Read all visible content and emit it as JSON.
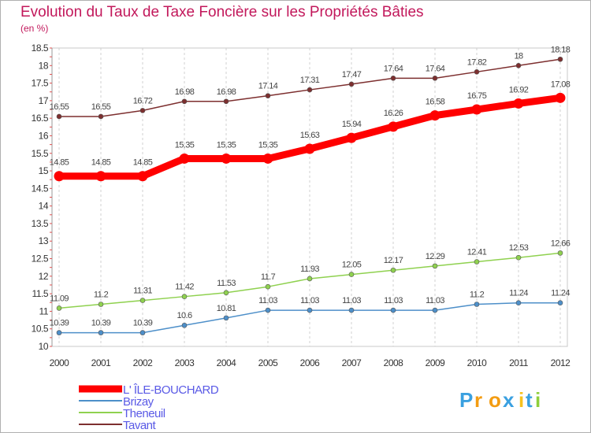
{
  "chart_data": {
    "type": "line",
    "title": "Evolution du Taux de Taxe Foncière sur les Propriétés Bâties",
    "unit_label": "(en %)",
    "categories": [
      "2000",
      "2001",
      "2002",
      "2003",
      "2004",
      "2005",
      "2006",
      "2007",
      "2008",
      "2009",
      "2010",
      "2011",
      "2012"
    ],
    "ylim": [
      10,
      18.5
    ],
    "yticks": [
      "10",
      "10.5",
      "11",
      "11.5",
      "12",
      "12.5",
      "13",
      "13.5",
      "14",
      "14.5",
      "15",
      "15.5",
      "16",
      "16.5",
      "17",
      "17.5",
      "18",
      "18.5"
    ],
    "grid": "vertical",
    "series": [
      {
        "name": "L' ÎLE-BOUCHARD",
        "color": "#ff0000",
        "emphasis": true,
        "values": [
          14.85,
          14.85,
          14.85,
          15.35,
          15.35,
          15.35,
          15.63,
          15.94,
          16.26,
          16.58,
          16.75,
          16.92,
          17.08
        ],
        "labels": [
          "14.85",
          "14.85",
          "14.85",
          "15.35",
          "15.35",
          "15.35",
          "15.63",
          "15.94",
          "16.26",
          "16.58",
          "16.75",
          "16.92",
          "17.08"
        ]
      },
      {
        "name": "Brizay",
        "color": "#4d8fc9",
        "values": [
          10.39,
          10.39,
          10.39,
          10.6,
          10.81,
          11.03,
          11.03,
          11.03,
          11.03,
          11.03,
          11.2,
          11.24,
          11.24
        ],
        "labels": [
          "10.39",
          "10.39",
          "10.39",
          "10.6",
          "10.81",
          "11.03",
          "11.03",
          "11.03",
          "11.03",
          "11.03",
          "11.2",
          "11.24",
          "11.24"
        ]
      },
      {
        "name": "Theneuil",
        "color": "#8fd14f",
        "values": [
          11.09,
          11.2,
          11.31,
          11.42,
          11.53,
          11.7,
          11.93,
          12.05,
          12.17,
          12.29,
          12.41,
          12.53,
          12.66
        ],
        "labels": [
          "11.09",
          "11.2",
          "11.31",
          "11.42",
          "11.53",
          "11.7",
          "11.93",
          "12.05",
          "12.17",
          "12.29",
          "12.41",
          "12.53",
          "12.66"
        ]
      },
      {
        "name": "Tavant",
        "color": "#7d2f2f",
        "values": [
          16.55,
          16.55,
          16.72,
          16.98,
          16.98,
          17.14,
          17.31,
          17.47,
          17.64,
          17.64,
          17.82,
          18,
          18.18
        ],
        "labels": [
          "16.55",
          "16.55",
          "16.72",
          "16.98",
          "16.98",
          "17.14",
          "17.31",
          "17.47",
          "17.64",
          "17.64",
          "17.82",
          "18",
          "18.18"
        ]
      }
    ]
  },
  "logo": {
    "letters": [
      "P",
      "r",
      "o",
      "x",
      "i",
      "t",
      "i"
    ],
    "colors": [
      "#3aa0e0",
      "#f39c12",
      "#f39c12",
      "#3aa0e0",
      "#f7c21e",
      "#3aa0e0",
      "#8fcf3c"
    ]
  }
}
